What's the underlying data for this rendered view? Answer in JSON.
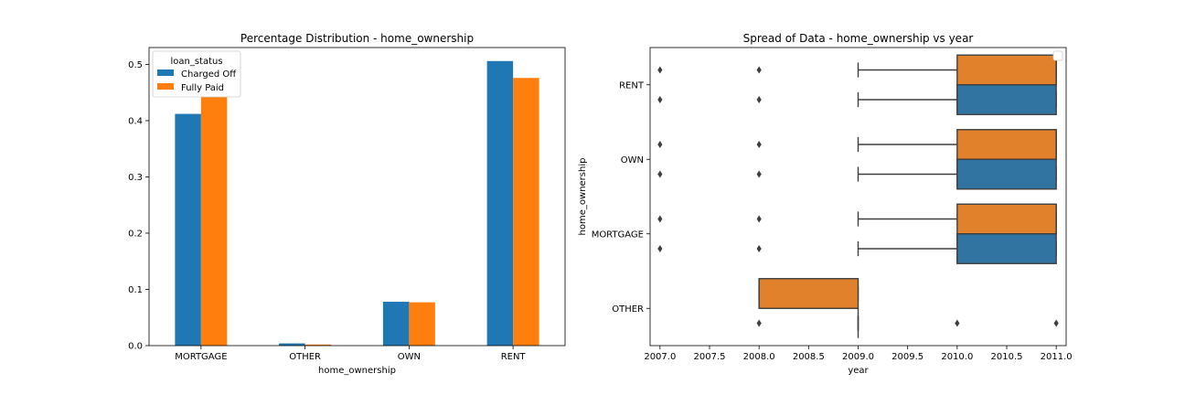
{
  "chart_data": [
    {
      "type": "bar",
      "title": "Percentage Distribution - home_ownership",
      "xlabel": "home_ownership",
      "ylabel": "",
      "categories": [
        "MORTGAGE",
        "OTHER",
        "OWN",
        "RENT"
      ],
      "ylim": [
        0,
        0.53
      ],
      "yticks": [
        "0.0",
        "0.1",
        "0.2",
        "0.3",
        "0.4",
        "0.5"
      ],
      "legend": {
        "title": "loan_status",
        "placement": "top-left"
      },
      "series": [
        {
          "name": "Charged Off",
          "color": "#1f77b4",
          "values": [
            0.412,
            0.004,
            0.078,
            0.506
          ]
        },
        {
          "name": "Fully Paid",
          "color": "#ff7f0e",
          "values": [
            0.443,
            0.002,
            0.077,
            0.476
          ]
        }
      ],
      "grid": false
    },
    {
      "type": "box",
      "title": "Spread of Data - home_ownership vs year",
      "xlabel": "year",
      "ylabel": "home_ownership",
      "categories": [
        "RENT",
        "OWN",
        "MORTGAGE",
        "OTHER"
      ],
      "xlim": [
        2006.9,
        2011.1
      ],
      "xticks": [
        "2007.0",
        "2007.5",
        "2008.0",
        "2008.5",
        "2009.0",
        "2009.5",
        "2010.0",
        "2010.5",
        "2011.0"
      ],
      "legend": {
        "placement": "top-right",
        "entries": []
      },
      "series": [
        {
          "group": "Fully Paid",
          "color": "#e1812c",
          "boxes": [
            {
              "category": "RENT",
              "q1": 2010,
              "median": 2011,
              "q3": 2011,
              "whisker_low": 2009,
              "whisker_high": 2011,
              "outliers": [
                2007,
                2008
              ]
            },
            {
              "category": "OWN",
              "q1": 2010,
              "median": 2011,
              "q3": 2011,
              "whisker_low": 2009,
              "whisker_high": 2011,
              "outliers": [
                2007,
                2008
              ]
            },
            {
              "category": "MORTGAGE",
              "q1": 2010,
              "median": 2011,
              "q3": 2011,
              "whisker_low": 2009,
              "whisker_high": 2011,
              "outliers": [
                2007,
                2008
              ]
            },
            {
              "category": "OTHER",
              "q1": 2008,
              "median": 2008,
              "q3": 2009,
              "whisker_low": 2008,
              "whisker_high": 2009,
              "outliers": []
            }
          ]
        },
        {
          "group": "Charged Off",
          "color": "#3274a1",
          "boxes": [
            {
              "category": "RENT",
              "q1": 2010,
              "median": 2010,
              "q3": 2011,
              "whisker_low": 2009,
              "whisker_high": 2011,
              "outliers": [
                2007,
                2008
              ]
            },
            {
              "category": "OWN",
              "q1": 2010,
              "median": 2010,
              "q3": 2011,
              "whisker_low": 2009,
              "whisker_high": 2011,
              "outliers": [
                2007,
                2008
              ]
            },
            {
              "category": "MORTGAGE",
              "q1": 2010,
              "median": 2010,
              "q3": 2011,
              "whisker_low": 2009,
              "whisker_high": 2011,
              "outliers": [
                2007,
                2008
              ]
            },
            {
              "category": "OTHER",
              "q1": 2009,
              "median": 2009,
              "q3": 2009,
              "whisker_low": 2009,
              "whisker_high": 2009,
              "outliers": [
                2008,
                2010,
                2011
              ]
            }
          ]
        }
      ],
      "grid": false
    }
  ]
}
